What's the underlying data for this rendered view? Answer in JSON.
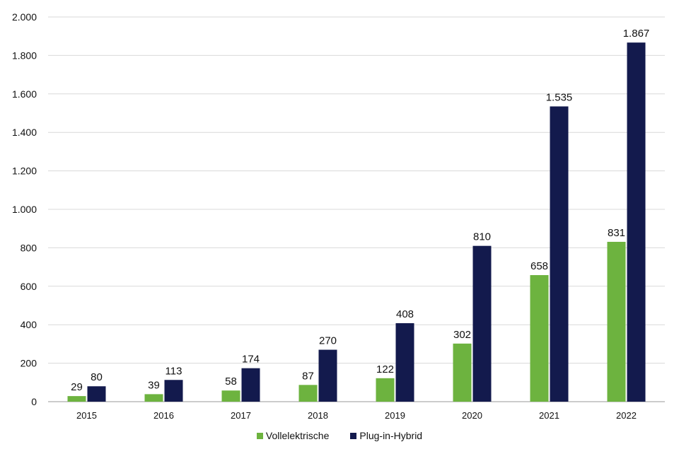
{
  "chart_data": {
    "type": "bar",
    "categories": [
      "2015",
      "2016",
      "2017",
      "2018",
      "2019",
      "2020",
      "2021",
      "2022"
    ],
    "series": [
      {
        "name": "Vollelektrische",
        "color": "#6db33f",
        "values": [
          29,
          39,
          58,
          87,
          122,
          302,
          658,
          831
        ],
        "labels": [
          "29",
          "39",
          "58",
          "87",
          "122",
          "302",
          "658",
          "831"
        ]
      },
      {
        "name": "Plug-in-Hybrid",
        "color": "#131a4d",
        "values": [
          80,
          113,
          174,
          270,
          408,
          810,
          1535,
          1867
        ],
        "labels": [
          "80",
          "113",
          "174",
          "270",
          "408",
          "810",
          "1.535",
          "1.867"
        ]
      }
    ],
    "ylim": [
      0,
      2000
    ],
    "yticks": [
      0,
      200,
      400,
      600,
      800,
      1000,
      1200,
      1400,
      1600,
      1800,
      2000
    ],
    "ytick_labels": [
      "0",
      "200",
      "400",
      "600",
      "800",
      "1.000",
      "1.200",
      "1.400",
      "1.600",
      "1.800",
      "2.000"
    ],
    "grid": true,
    "legend_position": "bottom"
  },
  "legend": {
    "series_1": "Vollelektrische",
    "series_2": "Plug-in-Hybrid"
  }
}
